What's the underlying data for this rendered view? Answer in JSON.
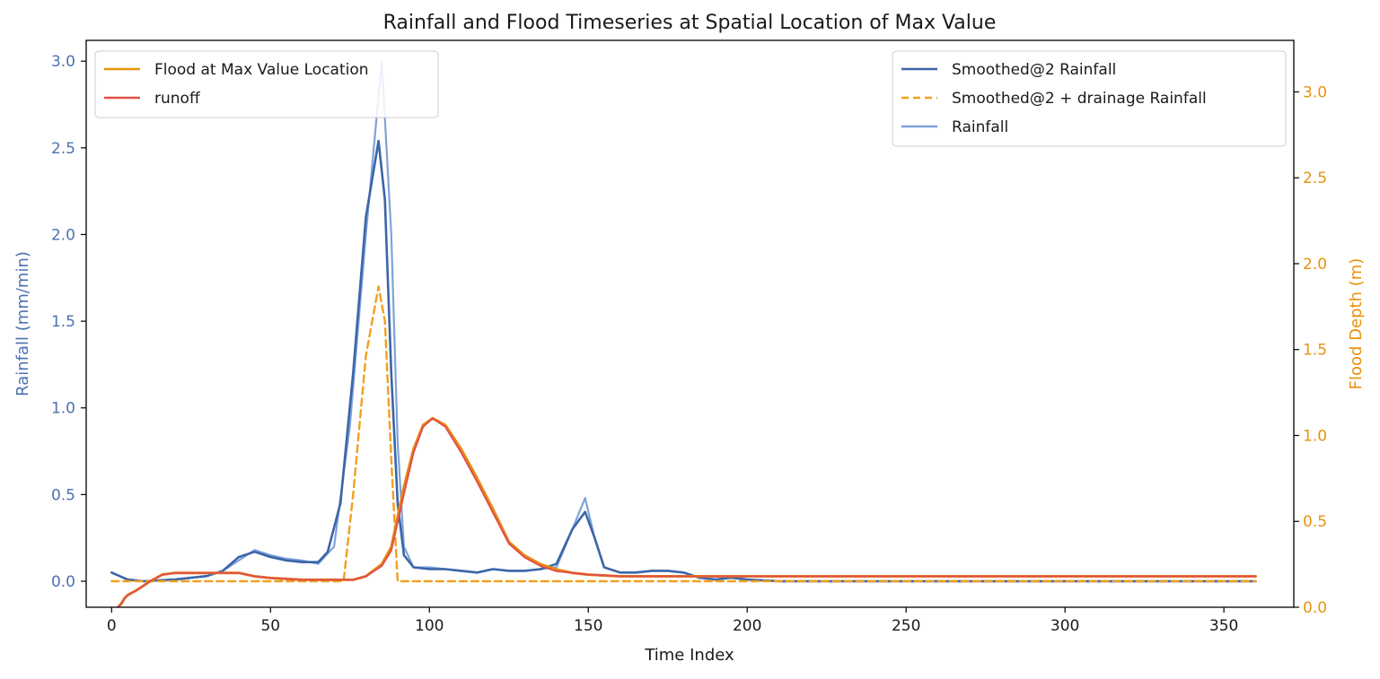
{
  "chart_data": {
    "type": "line",
    "title": "Rainfall and Flood Timeseries at Spatial Location of Max Value",
    "xlabel": "Time Index",
    "ylabel_left": "Rainfall (mm/min)",
    "ylabel_right": "Flood Depth (m)",
    "xlim": [
      -8,
      372
    ],
    "ylim_left": [
      -0.15,
      3.12
    ],
    "ylim_right": [
      0,
      3.3
    ],
    "x_ticks": [
      0,
      50,
      100,
      150,
      200,
      250,
      300,
      350
    ],
    "y_left_ticks": [
      "0.0",
      "0.5",
      "1.0",
      "1.5",
      "2.0",
      "2.5",
      "3.0"
    ],
    "y_right_ticks": [
      "0.0",
      "0.5",
      "1.0",
      "1.5",
      "2.0",
      "2.5",
      "3.0"
    ],
    "grid": false,
    "colors": {
      "left_axis": "#4c72b0",
      "right_axis": "#e8920e",
      "smoothed": "#3c65a8",
      "rainfall": "#7fa3d8",
      "drainage": "#f0a020",
      "flood": "#e88a10",
      "runoff": "#e0504a"
    },
    "legend_left": {
      "placement": "top-left",
      "entries": [
        {
          "label": "Flood at Max Value Location",
          "color": "#e8920e",
          "style": "solid"
        },
        {
          "label": "runoff",
          "color": "#e0504a",
          "style": "solid"
        }
      ]
    },
    "legend_right": {
      "placement": "top-right",
      "entries": [
        {
          "label": "Smoothed@2 Rainfall",
          "color": "#3c65a8",
          "style": "solid"
        },
        {
          "label": "Smoothed@2 + drainage Rainfall",
          "color": "#f0a020",
          "style": "dashed"
        },
        {
          "label": "Rainfall",
          "color": "#7fa3d8",
          "style": "solid"
        }
      ]
    },
    "series": [
      {
        "name": "Rainfall",
        "axis": "left",
        "x": [
          0,
          5,
          10,
          20,
          30,
          35,
          40,
          45,
          50,
          55,
          60,
          65,
          70,
          75,
          80,
          83,
          85,
          88,
          90,
          92,
          95,
          100,
          105,
          110,
          115,
          120,
          125,
          130,
          135,
          140,
          145,
          149,
          152,
          155,
          160,
          165,
          170,
          175,
          180,
          185,
          190,
          195,
          200,
          210,
          250,
          300,
          360
        ],
        "y": [
          0.05,
          0.01,
          0.0,
          0.01,
          0.03,
          0.06,
          0.12,
          0.18,
          0.15,
          0.13,
          0.12,
          0.1,
          0.2,
          0.9,
          2.0,
          2.6,
          3.0,
          2.0,
          0.8,
          0.2,
          0.08,
          0.08,
          0.07,
          0.06,
          0.05,
          0.07,
          0.06,
          0.06,
          0.07,
          0.08,
          0.3,
          0.48,
          0.25,
          0.08,
          0.05,
          0.05,
          0.06,
          0.06,
          0.05,
          0.02,
          0.01,
          0.02,
          0.01,
          0.0,
          0.0,
          0.0,
          0.0
        ]
      },
      {
        "name": "Smoothed@2 Rainfall",
        "axis": "left",
        "x": [
          0,
          5,
          10,
          20,
          30,
          35,
          40,
          45,
          50,
          55,
          60,
          65,
          68,
          72,
          76,
          80,
          84,
          86,
          88,
          90,
          92,
          95,
          100,
          105,
          110,
          115,
          120,
          125,
          130,
          135,
          140,
          145,
          149,
          152,
          155,
          160,
          165,
          170,
          175,
          180,
          185,
          190,
          195,
          200,
          210,
          250,
          300,
          360
        ],
        "y": [
          0.05,
          0.01,
          0.0,
          0.01,
          0.03,
          0.06,
          0.14,
          0.17,
          0.14,
          0.12,
          0.11,
          0.11,
          0.17,
          0.45,
          1.2,
          2.1,
          2.54,
          2.2,
          1.2,
          0.45,
          0.15,
          0.08,
          0.07,
          0.07,
          0.06,
          0.05,
          0.07,
          0.06,
          0.06,
          0.07,
          0.1,
          0.3,
          0.4,
          0.25,
          0.08,
          0.05,
          0.05,
          0.06,
          0.06,
          0.05,
          0.02,
          0.01,
          0.02,
          0.01,
          0.0,
          0.0,
          0.0,
          0.0
        ]
      },
      {
        "name": "Smoothed@2 + drainage Rainfall",
        "axis": "left",
        "x": [
          0,
          73,
          76,
          80,
          84,
          86,
          88,
          90,
          95,
          100,
          150,
          200,
          250,
          300,
          360
        ],
        "y": [
          0.0,
          0.0,
          0.5,
          1.3,
          1.7,
          1.5,
          0.7,
          0.0,
          0.0,
          0.0,
          0.0,
          0.0,
          0.0,
          0.0,
          0.0
        ]
      },
      {
        "name": "Flood at Max Value Location",
        "axis": "right",
        "x": [
          2,
          3,
          4,
          5,
          8,
          12,
          16,
          20,
          30,
          40,
          45,
          50,
          60,
          70,
          76,
          80,
          85,
          88,
          92,
          95,
          98,
          101,
          105,
          110,
          115,
          120,
          125,
          130,
          135,
          140,
          145,
          150,
          160,
          200,
          250,
          300,
          360
        ],
        "y": [
          0.0,
          0.02,
          0.05,
          0.07,
          0.1,
          0.15,
          0.19,
          0.2,
          0.2,
          0.2,
          0.18,
          0.17,
          0.16,
          0.16,
          0.16,
          0.18,
          0.25,
          0.35,
          0.7,
          0.92,
          1.06,
          1.1,
          1.06,
          0.92,
          0.75,
          0.57,
          0.38,
          0.3,
          0.25,
          0.22,
          0.2,
          0.19,
          0.18,
          0.18,
          0.18,
          0.18,
          0.18
        ]
      },
      {
        "name": "runoff",
        "axis": "right",
        "x": [
          2,
          3,
          4,
          5,
          8,
          12,
          16,
          20,
          30,
          40,
          45,
          50,
          60,
          70,
          76,
          80,
          85,
          88,
          92,
          95,
          98,
          101,
          105,
          110,
          115,
          120,
          125,
          130,
          135,
          140,
          145,
          150,
          160,
          200,
          250,
          300,
          360
        ],
        "y": [
          0.0,
          0.02,
          0.05,
          0.07,
          0.1,
          0.15,
          0.19,
          0.2,
          0.2,
          0.2,
          0.18,
          0.17,
          0.16,
          0.16,
          0.16,
          0.18,
          0.24,
          0.33,
          0.66,
          0.9,
          1.05,
          1.1,
          1.05,
          0.9,
          0.73,
          0.55,
          0.37,
          0.29,
          0.24,
          0.21,
          0.2,
          0.19,
          0.18,
          0.18,
          0.18,
          0.18,
          0.18
        ]
      }
    ]
  }
}
